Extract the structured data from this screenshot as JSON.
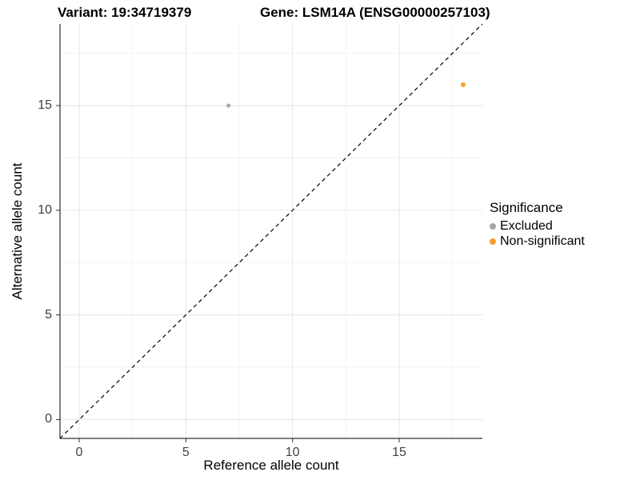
{
  "header": {
    "variant_title": "Variant: 19:34719379",
    "gene_title": "Gene: LSM14A (ENSG00000257103)"
  },
  "legend": {
    "title": "Significance",
    "items": [
      {
        "label": "Excluded",
        "color": "#a6a6a6"
      },
      {
        "label": "Non-significant",
        "color": "#f9a02c"
      }
    ]
  },
  "chart_data": {
    "type": "scatter",
    "title": "Variant: 19:34719379 / Gene: LSM14A (ENSG00000257103)",
    "xlabel": "Reference allele count",
    "ylabel": "Alternative allele count",
    "xlim": [
      -0.9,
      18.9
    ],
    "ylim": [
      -0.9,
      18.9
    ],
    "x_ticks": [
      0,
      5,
      10,
      15
    ],
    "y_ticks": [
      0,
      5,
      10,
      15
    ],
    "minor_ticks": [
      2.5,
      7.5,
      12.5,
      17.5
    ],
    "grid": true,
    "legend_title": "Significance",
    "legend_position": "right",
    "identity_line": {
      "style": "dashed",
      "color": "#000000",
      "from": -0.9,
      "to": 18.9
    },
    "series": [
      {
        "name": "Excluded",
        "color": "#a6a6a6",
        "size": 2.5,
        "points": [
          [
            7,
            15
          ]
        ]
      },
      {
        "name": "Non-significant",
        "color": "#f9a02c",
        "size": 3,
        "points": [
          [
            18,
            16
          ]
        ]
      }
    ]
  }
}
